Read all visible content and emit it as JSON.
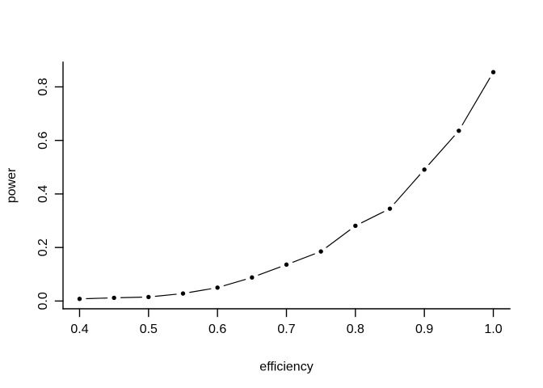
{
  "figure": {
    "kind": "R base plot, scatter with connecting line segments (type='b')",
    "background_color": "#ffffff",
    "text_color": "#000000"
  },
  "chart_data": {
    "type": "line",
    "style": "points-and-lines",
    "marker": "filled-circle",
    "title": "",
    "xlabel": "efficiency",
    "ylabel": "power",
    "x": [
      0.4,
      0.45,
      0.5,
      0.55,
      0.6,
      0.65,
      0.7,
      0.75,
      0.8,
      0.85,
      0.9,
      0.95,
      1.0
    ],
    "y": [
      0.008,
      0.012,
      0.015,
      0.028,
      0.05,
      0.088,
      0.136,
      0.185,
      0.281,
      0.345,
      0.491,
      0.636,
      0.855
    ],
    "x_ticks": [
      0.4,
      0.5,
      0.6,
      0.7,
      0.8,
      0.9,
      1.0
    ],
    "x_tick_labels": [
      "0.4",
      "0.5",
      "0.6",
      "0.7",
      "0.8",
      "0.9",
      "1.0"
    ],
    "y_ticks": [
      0.0,
      0.2,
      0.4,
      0.6,
      0.8
    ],
    "y_tick_labels": [
      "0.0",
      "0.2",
      "0.4",
      "0.6",
      "0.8"
    ],
    "xlim": [
      0.376,
      1.024
    ],
    "ylim": [
      -0.029,
      0.892
    ],
    "grid": false,
    "legend": null,
    "colors": {
      "axis": "#000000",
      "line": "#000000",
      "point": "#000000",
      "tick_label": "#000000",
      "axis_title": "#000000"
    }
  }
}
